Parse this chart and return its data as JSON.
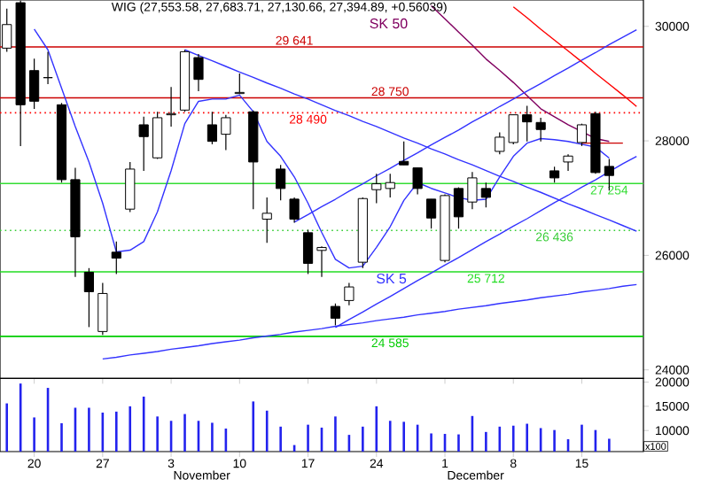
{
  "chart_data": [
    {
      "type": "candlestick",
      "title": "WIG (27,553.58, 27,683.71, 27,130.66, 27,394.89, +0.56039)",
      "categories": [
        null,
        null,
        "20",
        null,
        null,
        null,
        null,
        "27",
        null,
        null,
        null,
        null,
        "3",
        null,
        null,
        null,
        null,
        "10",
        null,
        null,
        null,
        null,
        "17",
        null,
        null,
        null,
        null,
        "24",
        null,
        null,
        null,
        null,
        "1",
        null,
        null,
        null,
        null,
        "8",
        null,
        null,
        null,
        null,
        "15",
        null,
        null,
        null,
        null
      ],
      "ohlc": [
        [
          29619,
          30309,
          29557,
          30031
        ],
        [
          30412,
          30450,
          27909,
          28630
        ],
        [
          29227,
          29434,
          28558,
          28692
        ],
        [
          29104,
          29557,
          28990,
          29104
        ],
        [
          28630,
          28661,
          27271,
          27322
        ],
        [
          27322,
          27528,
          25623,
          26323
        ],
        [
          25705,
          25777,
          24747,
          25365
        ],
        [
          24670,
          25520,
          24610,
          25334
        ],
        [
          26055,
          26240,
          25674,
          25952
        ],
        [
          26807,
          27631,
          26755,
          27507
        ],
        [
          28280,
          28424,
          27477,
          28074
        ],
        [
          27703,
          28507,
          27682,
          28404
        ],
        [
          28455,
          28940,
          28250,
          28476
        ],
        [
          28537,
          29588,
          28507,
          29557
        ],
        [
          29454,
          29516,
          28867,
          29073
        ],
        [
          28280,
          28507,
          27940,
          27991
        ],
        [
          28115,
          28455,
          27837,
          28404
        ],
        [
          28826,
          29176,
          28815,
          28846
        ],
        [
          28507,
          28530,
          26807,
          27631
        ],
        [
          26632,
          27013,
          26220,
          26735
        ],
        [
          27507,
          27580,
          26961,
          27168
        ],
        [
          26982,
          27013,
          26570,
          26632
        ],
        [
          26395,
          26447,
          25674,
          25860
        ],
        [
          26086,
          26158,
          25623,
          26138
        ],
        [
          25108,
          25159,
          24778,
          24902
        ],
        [
          25211,
          25520,
          25128,
          25448
        ],
        [
          25880,
          27013,
          25777,
          26992
        ],
        [
          27147,
          27425,
          26910,
          27250
        ],
        [
          27168,
          27425,
          27013,
          27271
        ],
        [
          27641,
          27991,
          27580,
          27580
        ],
        [
          27528,
          27528,
          27065,
          27168
        ],
        [
          26982,
          26982,
          26467,
          26652
        ],
        [
          25911,
          27065,
          25880,
          27044
        ],
        [
          27168,
          27188,
          26467,
          26673
        ],
        [
          26931,
          27456,
          26807,
          27353
        ],
        [
          27168,
          27271,
          26838,
          27013
        ],
        [
          27816,
          28146,
          27765,
          28064
        ],
        [
          27971,
          28455,
          27940,
          28455
        ],
        [
          28455,
          28610,
          27991,
          28331
        ],
        [
          28321,
          28404,
          27991,
          28198
        ],
        [
          27476,
          27548,
          27271,
          27353
        ],
        [
          27631,
          27765,
          27476,
          27734
        ],
        [
          27971,
          28300,
          27910,
          28280
        ],
        [
          28476,
          28507,
          27425,
          27446
        ],
        [
          27553.58,
          27683.71,
          27130.66,
          27394.89
        ],
        null,
        null
      ],
      "series": [
        {
          "name": "SK 5",
          "type": "line",
          "color": "#3333ff",
          "values": [
            null,
            null,
            29950,
            29590,
            28920,
            28250,
            27630,
            26910,
            26060,
            26090,
            26240,
            26760,
            27480,
            28300,
            28690,
            28730,
            28730,
            28800,
            28510,
            27990,
            27730,
            27370,
            26910,
            26400,
            25930,
            25780,
            25810,
            26140,
            26500,
            26960,
            27270,
            27170,
            27090,
            27010,
            26960,
            26980,
            27370,
            27730,
            27960,
            28040,
            28020,
            27990,
            27940,
            27890,
            27700,
            null,
            null
          ]
        },
        {
          "name": "SK 50",
          "type": "line",
          "color": "#800060",
          "values": [
            null,
            null,
            null,
            null,
            null,
            null,
            null,
            null,
            null,
            null,
            null,
            null,
            null,
            null,
            null,
            null,
            null,
            null,
            null,
            null,
            null,
            null,
            null,
            null,
            null,
            null,
            null,
            null,
            null,
            null,
            null,
            30360,
            30130,
            29900,
            29670,
            29430,
            29230,
            29020,
            28790,
            28560,
            28420,
            28280,
            28160,
            28040,
            27990,
            null,
            null
          ]
        },
        {
          "type": "line",
          "color": "#3333ff",
          "values": [
            null,
            null,
            null,
            null,
            null,
            null,
            null,
            null,
            null,
            null,
            null,
            null,
            null,
            29590,
            29490,
            29400,
            29300,
            29200,
            29110,
            29010,
            28920,
            28820,
            28730,
            28630,
            28530,
            28440,
            28340,
            28250,
            28150,
            28050,
            27960,
            27860,
            27770,
            27670,
            27580,
            27480,
            27380,
            27290,
            27190,
            27100,
            27000,
            26900,
            26810,
            26710,
            26620,
            26520,
            26420
          ]
        },
        {
          "type": "line",
          "color": "#3333ff",
          "values": [
            null,
            null,
            null,
            null,
            null,
            null,
            null,
            null,
            null,
            null,
            null,
            null,
            null,
            null,
            null,
            null,
            null,
            null,
            null,
            null,
            null,
            26580,
            26710,
            26850,
            26980,
            27120,
            27250,
            27390,
            27520,
            27660,
            27790,
            27930,
            28060,
            28190,
            28330,
            28460,
            28600,
            28730,
            28870,
            29000,
            29140,
            29270,
            29410,
            29540,
            29680,
            29810,
            29940
          ]
        },
        {
          "type": "line",
          "color": "#3333ff",
          "values": [
            null,
            null,
            null,
            null,
            null,
            null,
            null,
            null,
            null,
            null,
            null,
            null,
            null,
            null,
            null,
            null,
            null,
            null,
            null,
            null,
            null,
            null,
            null,
            null,
            24740,
            24880,
            25010,
            25150,
            25280,
            25420,
            25560,
            25690,
            25830,
            25960,
            26100,
            26240,
            26370,
            26510,
            26640,
            26780,
            26920,
            27050,
            27190,
            27320,
            27460,
            27600,
            27730
          ]
        },
        {
          "type": "line",
          "color": "#3333ff",
          "values": [
            null,
            null,
            null,
            null,
            null,
            null,
            null,
            24190,
            24220,
            24260,
            24290,
            24320,
            24360,
            24390,
            24420,
            24460,
            24490,
            24520,
            24560,
            24590,
            24620,
            24660,
            24690,
            24720,
            24760,
            24790,
            24820,
            24860,
            24890,
            24920,
            24960,
            24990,
            25020,
            25060,
            25090,
            25120,
            25160,
            25190,
            25220,
            25260,
            25290,
            25320,
            25360,
            25390,
            25420,
            25460,
            25490
          ]
        },
        {
          "type": "line",
          "color": "#ff0000",
          "values": [
            null,
            null,
            null,
            null,
            null,
            null,
            null,
            null,
            null,
            null,
            null,
            null,
            null,
            null,
            null,
            null,
            null,
            null,
            null,
            null,
            null,
            null,
            null,
            null,
            null,
            null,
            null,
            null,
            null,
            null,
            null,
            null,
            null,
            null,
            null,
            null,
            null,
            30340,
            30150,
            29950,
            29760,
            29570,
            29380,
            29180,
            28990,
            28800,
            28600
          ]
        },
        {
          "type": "line",
          "color": "#cc0000",
          "values": [
            null,
            null,
            null,
            null,
            null,
            null,
            null,
            null,
            null,
            null,
            null,
            null,
            null,
            null,
            null,
            null,
            null,
            null,
            null,
            null,
            null,
            null,
            null,
            null,
            null,
            null,
            null,
            null,
            null,
            null,
            null,
            null,
            null,
            null,
            null,
            null,
            null,
            null,
            null,
            null,
            null,
            null,
            27960,
            27960,
            27960,
            27960,
            null
          ]
        }
      ],
      "ref_lines": [
        {
          "axis": "y",
          "value": 29641,
          "label": "29 641",
          "color": "#cc0000"
        },
        {
          "axis": "y",
          "value": 28750,
          "label": "28 750",
          "color": "#cc0000"
        },
        {
          "axis": "y",
          "value": 28490,
          "label": "28 490",
          "color": "#ff0000",
          "line_style": "dotted"
        },
        {
          "axis": "y",
          "value": 27254,
          "label": "27 254",
          "color": "#33dd33"
        },
        {
          "axis": "y",
          "value": 26436,
          "label": "26 436",
          "color": "#33cc33",
          "line_style": "dotted"
        },
        {
          "axis": "y",
          "value": 25712,
          "label": "25 712",
          "color": "#22dd22"
        },
        {
          "axis": "y",
          "value": 24585,
          "label": "24 585",
          "color": "#00cc00"
        }
      ],
      "ylim": [
        23850,
        30460
      ],
      "yticks": [
        24000,
        26000,
        28000,
        30000
      ],
      "tick_labels": "y"
    },
    {
      "type": "bar",
      "color": "#2222ee",
      "ylabel": "x100",
      "categories": [
        null,
        null,
        "20",
        null,
        null,
        null,
        null,
        "27",
        null,
        null,
        null,
        null,
        "3",
        null,
        null,
        null,
        null,
        "10",
        null,
        null,
        null,
        null,
        "17",
        null,
        null,
        null,
        null,
        "24",
        null,
        null,
        null,
        null,
        "1",
        null,
        null,
        null,
        null,
        "8",
        null,
        null,
        null,
        null,
        "15",
        null,
        null,
        null,
        null
      ],
      "values": [
        15600,
        19700,
        12700,
        18800,
        11500,
        14700,
        14700,
        13700,
        13900,
        15000,
        17000,
        12900,
        12000,
        13400,
        12000,
        11600,
        10400,
        null,
        16000,
        14100,
        10800,
        7000,
        11200,
        10600,
        12900,
        9100,
        10800,
        15000,
        12000,
        11800,
        11200,
        9400,
        9300,
        9200,
        13000,
        9700,
        10800,
        11000,
        11400,
        10500,
        10100,
        8200,
        11200,
        10100,
        8300,
        null,
        null
      ],
      "ylim": [
        5650,
        20750
      ],
      "yticks": [
        10000,
        15000,
        20000
      ],
      "annotations": [
        "November",
        "December"
      ]
    }
  ]
}
